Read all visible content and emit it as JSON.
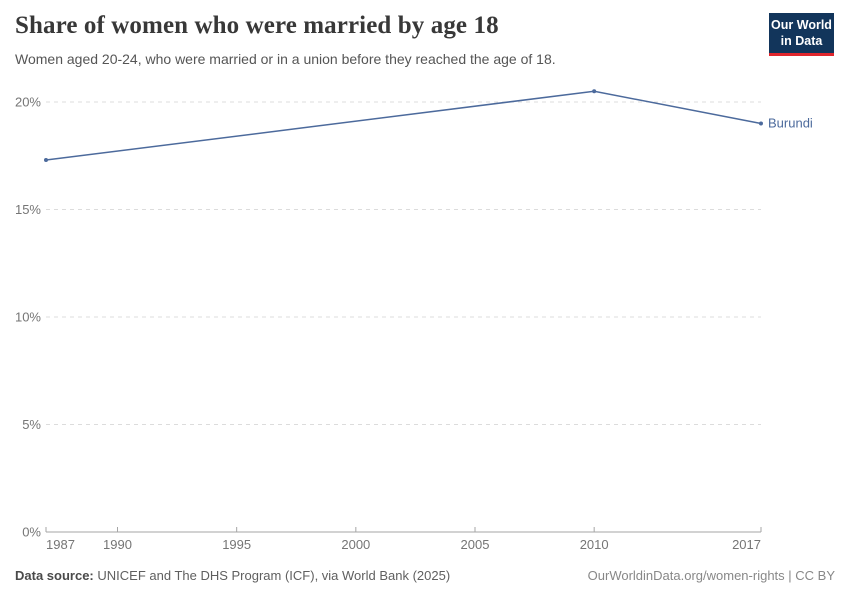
{
  "header": {
    "title": "Share of women who were married by age 18",
    "subtitle": "Women aged 20-24, who were married or in a union before they reached the age of 18.",
    "logo_line1": "Our World",
    "logo_line2": "in Data"
  },
  "colors": {
    "series_blue": "#4c6a9c",
    "logo_background": "#12355b",
    "logo_accent_red": "#e0262d",
    "gridline": "#dcdcdc",
    "axis_line": "#a5a5a5",
    "tick_label": "#757575"
  },
  "chart_data": {
    "type": "line",
    "title": "Share of women who were married by age 18",
    "xlabel": "",
    "ylabel": "",
    "xlim": [
      1987,
      2017
    ],
    "ylim": [
      0,
      20
    ],
    "x_ticks": [
      1987,
      1990,
      1995,
      2000,
      2005,
      2010,
      2017
    ],
    "y_ticks": [
      0,
      5,
      10,
      15,
      20
    ],
    "y_tick_suffix": "%",
    "grid": "horizontal-dashed",
    "legend": "end-of-line-label",
    "series": [
      {
        "name": "Burundi",
        "color": "#4c6a9c",
        "points": [
          {
            "year": 1987,
            "value": 17.3
          },
          {
            "year": 2010,
            "value": 20.5
          },
          {
            "year": 2017,
            "value": 19.0
          }
        ]
      }
    ]
  },
  "footer": {
    "source_label": "Data source:",
    "source_text": "UNICEF and The DHS Program (ICF), via World Bank (2025)",
    "rights": "OurWorldinData.org/women-rights | CC BY"
  }
}
